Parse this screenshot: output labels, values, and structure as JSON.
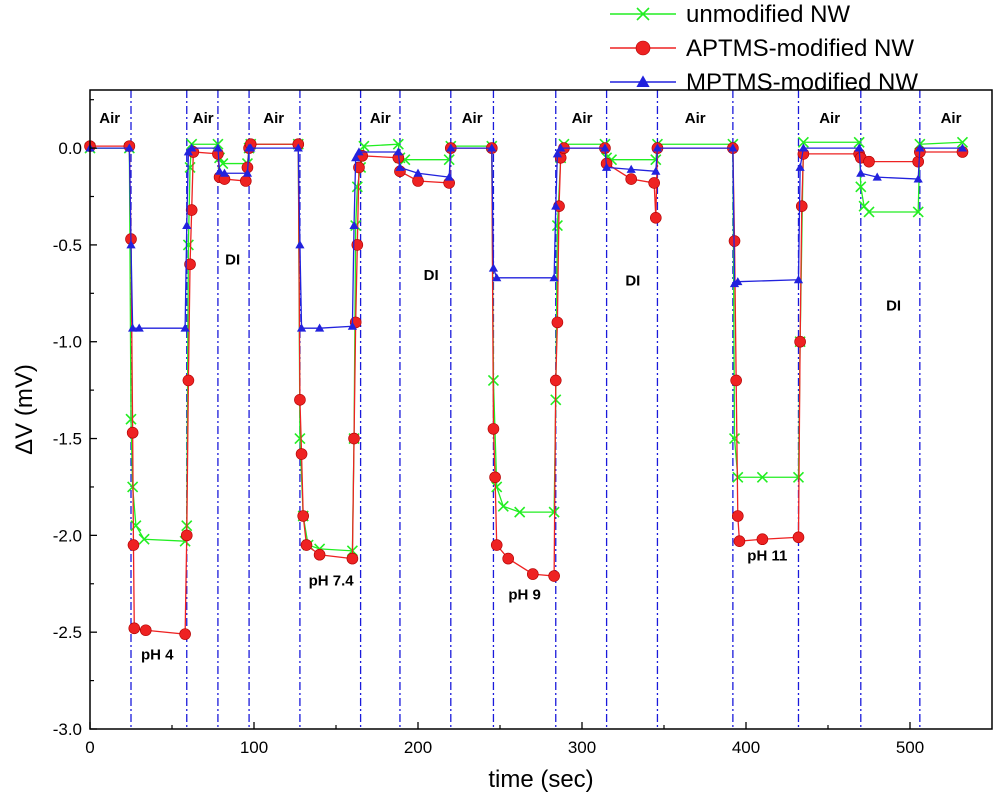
{
  "chart_data": {
    "type": "line",
    "title": "",
    "xlabel": "time (sec)",
    "ylabel": "ΔV (mV)",
    "xlim": [
      0,
      550
    ],
    "ylim": [
      -3.0,
      0.3
    ],
    "xticks": [
      0,
      100,
      200,
      300,
      400,
      500
    ],
    "yticks": [
      0.0,
      -0.5,
      -1.0,
      -1.5,
      -2.0,
      -2.5,
      -3.0
    ],
    "xtick_labels": [
      "0",
      "100",
      "200",
      "300",
      "400",
      "500"
    ],
    "ytick_labels": [
      "0.0",
      "-0.5",
      "-1.0",
      "-1.5",
      "-2.0",
      "-2.5",
      "-3.0"
    ],
    "legend_position": "top-right",
    "boundaries": [
      25,
      59,
      78,
      97,
      128,
      165,
      189,
      220,
      246,
      284,
      315,
      346,
      392,
      432,
      470,
      506
    ],
    "regions": [
      {
        "label": "Air",
        "x": 12,
        "y": 0.13
      },
      {
        "label": "Air",
        "x": 69,
        "y": 0.13
      },
      {
        "label": "Air",
        "x": 112,
        "y": 0.13
      },
      {
        "label": "Air",
        "x": 177,
        "y": 0.13
      },
      {
        "label": "Air",
        "x": 233,
        "y": 0.13
      },
      {
        "label": "Air",
        "x": 300,
        "y": 0.13
      },
      {
        "label": "Air",
        "x": 369,
        "y": 0.13
      },
      {
        "label": "Air",
        "x": 451,
        "y": 0.13
      },
      {
        "label": "Air",
        "x": 525,
        "y": 0.13
      },
      {
        "label": "DI",
        "x": 87,
        "y": -0.6
      },
      {
        "label": "DI",
        "x": 208,
        "y": -0.68
      },
      {
        "label": "DI",
        "x": 331,
        "y": -0.71
      },
      {
        "label": "DI",
        "x": 490,
        "y": -0.84
      },
      {
        "label": "pH 4",
        "x": 41,
        "y": -2.64
      },
      {
        "label": "pH 7.4",
        "x": 147,
        "y": -2.26
      },
      {
        "label": "pH 9",
        "x": 265,
        "y": -2.33
      },
      {
        "label": "pH 11",
        "x": 413,
        "y": -2.13
      }
    ],
    "series": [
      {
        "name": "unmodified NW",
        "color": "#22ee22",
        "marker": "x",
        "points": [
          [
            0,
            0.0
          ],
          [
            24,
            0.0
          ],
          [
            25,
            -1.4
          ],
          [
            26,
            -1.75
          ],
          [
            28,
            -1.95
          ],
          [
            33,
            -2.02
          ],
          [
            58,
            -2.03
          ],
          [
            59,
            -1.95
          ],
          [
            60,
            -0.5
          ],
          [
            61,
            -0.1
          ],
          [
            62,
            0.02
          ],
          [
            78,
            0.02
          ],
          [
            79,
            -0.05
          ],
          [
            81,
            -0.08
          ],
          [
            96,
            -0.08
          ],
          [
            97,
            0.0
          ],
          [
            98,
            0.02
          ],
          [
            127,
            0.02
          ],
          [
            128,
            -1.5
          ],
          [
            130,
            -1.9
          ],
          [
            133,
            -2.05
          ],
          [
            140,
            -2.07
          ],
          [
            160,
            -2.08
          ],
          [
            161,
            -1.5
          ],
          [
            162,
            -0.4
          ],
          [
            163,
            -0.2
          ],
          [
            165,
            -0.1
          ],
          [
            167,
            0.01
          ],
          [
            188,
            0.02
          ],
          [
            189,
            -0.05
          ],
          [
            192,
            -0.06
          ],
          [
            219,
            -0.06
          ],
          [
            220,
            0.01
          ],
          [
            245,
            0.01
          ],
          [
            246,
            -1.2
          ],
          [
            248,
            -1.75
          ],
          [
            252,
            -1.85
          ],
          [
            262,
            -1.88
          ],
          [
            283,
            -1.88
          ],
          [
            284,
            -1.3
          ],
          [
            285,
            -0.4
          ],
          [
            287,
            -0.05
          ],
          [
            289,
            0.02
          ],
          [
            314,
            0.02
          ],
          [
            315,
            -0.05
          ],
          [
            318,
            -0.06
          ],
          [
            345,
            -0.06
          ],
          [
            346,
            0.02
          ],
          [
            392,
            0.02
          ],
          [
            393,
            -1.5
          ],
          [
            395,
            -1.7
          ],
          [
            410,
            -1.7
          ],
          [
            432,
            -1.7
          ],
          [
            433,
            -1.0
          ],
          [
            435,
            0.03
          ],
          [
            469,
            0.03
          ],
          [
            470,
            -0.2
          ],
          [
            472,
            -0.3
          ],
          [
            475,
            -0.33
          ],
          [
            505,
            -0.33
          ],
          [
            506,
            0.02
          ],
          [
            532,
            0.03
          ]
        ]
      },
      {
        "name": "APTMS-modified NW",
        "color": "#ee2222",
        "marker": "o",
        "points": [
          [
            0,
            0.01
          ],
          [
            24,
            0.01
          ],
          [
            25,
            -0.47
          ],
          [
            26,
            -1.47
          ],
          [
            26.5,
            -2.05
          ],
          [
            27,
            -2.48
          ],
          [
            34,
            -2.49
          ],
          [
            58,
            -2.51
          ],
          [
            59,
            -2.0
          ],
          [
            60,
            -1.2
          ],
          [
            61,
            -0.6
          ],
          [
            62,
            -0.32
          ],
          [
            63,
            -0.02
          ],
          [
            78,
            -0.03
          ],
          [
            79,
            -0.15
          ],
          [
            82,
            -0.16
          ],
          [
            95,
            -0.17
          ],
          [
            96,
            -0.1
          ],
          [
            97,
            0.0
          ],
          [
            98,
            0.02
          ],
          [
            127,
            0.02
          ],
          [
            128,
            -1.3
          ],
          [
            129,
            -1.58
          ],
          [
            130,
            -1.9
          ],
          [
            132,
            -2.05
          ],
          [
            140,
            -2.1
          ],
          [
            160,
            -2.12
          ],
          [
            161,
            -1.5
          ],
          [
            162,
            -0.9
          ],
          [
            163,
            -0.5
          ],
          [
            164,
            -0.1
          ],
          [
            166,
            -0.04
          ],
          [
            188,
            -0.05
          ],
          [
            189,
            -0.12
          ],
          [
            200,
            -0.17
          ],
          [
            219,
            -0.18
          ],
          [
            220,
            0.0
          ],
          [
            245,
            0.0
          ],
          [
            246,
            -1.45
          ],
          [
            247,
            -1.7
          ],
          [
            248,
            -2.05
          ],
          [
            255,
            -2.12
          ],
          [
            270,
            -2.2
          ],
          [
            283,
            -2.21
          ],
          [
            284,
            -1.2
          ],
          [
            285,
            -0.9
          ],
          [
            286,
            -0.3
          ],
          [
            287,
            -0.05
          ],
          [
            289,
            0.0
          ],
          [
            314,
            0.0
          ],
          [
            315,
            -0.08
          ],
          [
            330,
            -0.16
          ],
          [
            344,
            -0.18
          ],
          [
            345,
            -0.36
          ],
          [
            346,
            0.0
          ],
          [
            392,
            0.0
          ],
          [
            393,
            -0.48
          ],
          [
            394,
            -1.2
          ],
          [
            395,
            -1.9
          ],
          [
            396,
            -2.03
          ],
          [
            410,
            -2.02
          ],
          [
            432,
            -2.01
          ],
          [
            433,
            -1.0
          ],
          [
            434,
            -0.3
          ],
          [
            435,
            -0.03
          ],
          [
            469,
            -0.03
          ],
          [
            470,
            -0.05
          ],
          [
            475,
            -0.07
          ],
          [
            505,
            -0.07
          ],
          [
            506,
            -0.02
          ],
          [
            532,
            -0.02
          ]
        ]
      },
      {
        "name": "MPTMS-modified NW",
        "color": "#2222dd",
        "marker": "^",
        "points": [
          [
            0,
            0.0
          ],
          [
            24,
            0.0
          ],
          [
            25,
            -0.5
          ],
          [
            26,
            -0.93
          ],
          [
            30,
            -0.93
          ],
          [
            58,
            -0.93
          ],
          [
            59,
            -0.4
          ],
          [
            60,
            -0.02
          ],
          [
            62,
            0.0
          ],
          [
            78,
            0.0
          ],
          [
            79,
            -0.12
          ],
          [
            82,
            -0.13
          ],
          [
            96,
            -0.13
          ],
          [
            97,
            0.0
          ],
          [
            98,
            0.0
          ],
          [
            127,
            0.0
          ],
          [
            128,
            -0.5
          ],
          [
            129,
            -0.93
          ],
          [
            140,
            -0.93
          ],
          [
            160,
            -0.92
          ],
          [
            161,
            -0.4
          ],
          [
            162,
            -0.05
          ],
          [
            164,
            -0.02
          ],
          [
            188,
            -0.02
          ],
          [
            189,
            -0.1
          ],
          [
            200,
            -0.13
          ],
          [
            219,
            -0.15
          ],
          [
            220,
            0.0
          ],
          [
            245,
            0.0
          ],
          [
            246,
            -0.62
          ],
          [
            248,
            -0.67
          ],
          [
            283,
            -0.67
          ],
          [
            284,
            -0.3
          ],
          [
            285,
            -0.03
          ],
          [
            287,
            0.0
          ],
          [
            314,
            0.0
          ],
          [
            315,
            -0.1
          ],
          [
            330,
            -0.11
          ],
          [
            345,
            -0.12
          ],
          [
            346,
            0.0
          ],
          [
            392,
            0.0
          ],
          [
            393,
            -0.7
          ],
          [
            395,
            -0.69
          ],
          [
            432,
            -0.68
          ],
          [
            433,
            -0.1
          ],
          [
            435,
            0.0
          ],
          [
            469,
            0.0
          ],
          [
            470,
            -0.13
          ],
          [
            480,
            -0.15
          ],
          [
            505,
            -0.16
          ],
          [
            506,
            0.0
          ],
          [
            532,
            0.0
          ]
        ]
      }
    ]
  }
}
